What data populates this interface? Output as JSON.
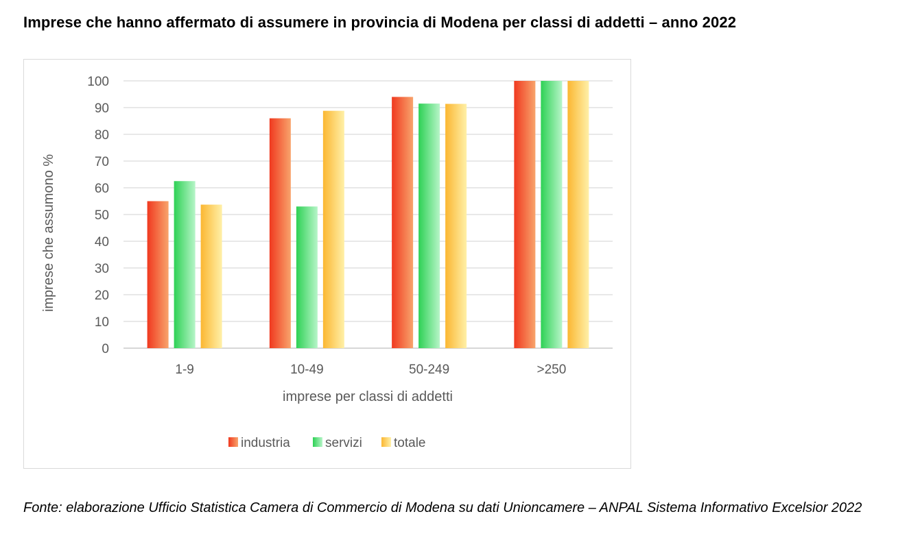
{
  "page": {
    "title": "Imprese che hanno affermato di assumere in provincia di Modena per classi di addetti – anno 2022",
    "source": "Fonte: elaborazione Ufficio Statistica Camera di Commercio di Modena su dati Unioncamere – ANPAL Sistema Informativo Excelsior 2022"
  },
  "chart_data": {
    "type": "bar",
    "title": "",
    "xlabel": "imprese per classi di addetti",
    "ylabel": "imprese che assumono %",
    "ylim": [
      0,
      100
    ],
    "yticks": [
      0,
      10,
      20,
      30,
      40,
      50,
      60,
      70,
      80,
      90,
      100
    ],
    "grid": true,
    "legend_position": "bottom",
    "categories": [
      "1-9",
      "10-49",
      "50-249",
      ">250"
    ],
    "series": [
      {
        "name": "industria",
        "values": [
          55,
          86,
          94,
          100
        ],
        "color_light": "#f8a46c",
        "color_dark": "#f0391f"
      },
      {
        "name": "servizi",
        "values": [
          62.5,
          53,
          91.5,
          100
        ],
        "color_light": "#b7f5c8",
        "color_dark": "#2ed155"
      },
      {
        "name": "totale",
        "values": [
          53.7,
          88.8,
          91.4,
          100
        ],
        "color_light": "#fff0a8",
        "color_dark": "#fbb732"
      }
    ]
  }
}
